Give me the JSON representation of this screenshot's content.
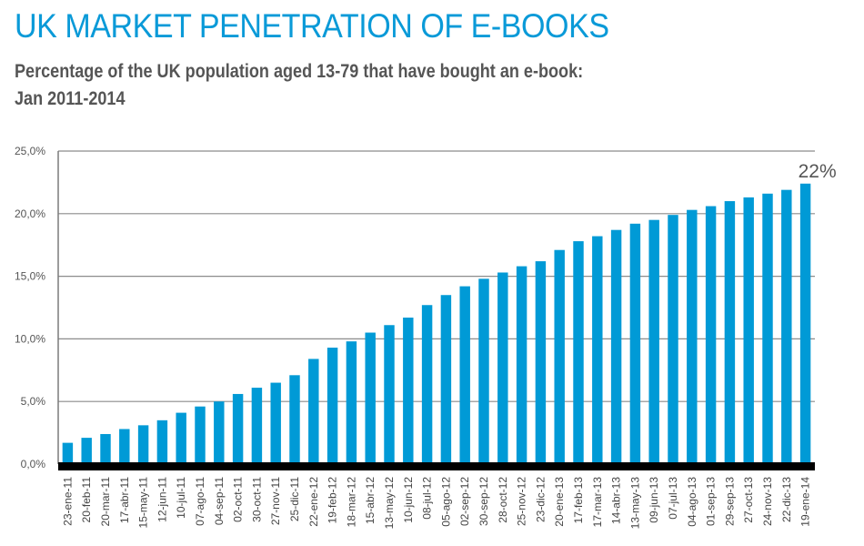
{
  "header": {
    "title": "UK MARKET PENETRATION OF E-BOOKS",
    "subtitle": "Percentage of the UK population aged 13-79 that have bought an e-book: Jan 2011-2014"
  },
  "colors": {
    "title": "#0a9ad8",
    "bar": "#009ad6",
    "baseline": "#000000",
    "grid": "#8c8c8c",
    "text": "#555555"
  },
  "chart_data": {
    "type": "bar",
    "title": "UK MARKET PENETRATION OF E-BOOKS",
    "subtitle": "Percentage of the UK population aged 13-79 that have bought an e-book: Jan 2011-2014",
    "xlabel": "",
    "ylabel": "",
    "ylim": [
      0,
      25
    ],
    "yticks": [
      0,
      5,
      10,
      15,
      20,
      25
    ],
    "ytick_labels": [
      "0,0%",
      "5,0%",
      "10,0%",
      "15,0%",
      "20,0%",
      "25,0%"
    ],
    "grid": true,
    "legend": "none",
    "categories": [
      "23-ene-11",
      "20-feb-11",
      "20-mar-11",
      "17-abr-11",
      "15-may-11",
      "12-jun-11",
      "10-jul-11",
      "07-ago-11",
      "04-sep-11",
      "02-oct-11",
      "30-oct-11",
      "27-nov-11",
      "25-dic-11",
      "22-ene-12",
      "19-feb-12",
      "18-mar-12",
      "15-abr-12",
      "13-may-12",
      "10-jun-12",
      "08-jul-12",
      "05-ago-12",
      "02-sep-12",
      "30-sep-12",
      "28-oct-12",
      "25-nov-12",
      "23-dic-12",
      "20-ene-13",
      "17-feb-13",
      "17-mar-13",
      "14-abr-13",
      "13-may-13",
      "09-jun-13",
      "07-jul-13",
      "04-ago-13",
      "01-sep-13",
      "29-sep-13",
      "27-oct-13",
      "24-nov-13",
      "22-dic-13",
      "19-ene-14"
    ],
    "values": [
      1.7,
      2.1,
      2.4,
      2.8,
      3.1,
      3.5,
      4.1,
      4.6,
      5.0,
      5.6,
      6.1,
      6.5,
      7.1,
      8.4,
      9.3,
      9.8,
      10.5,
      11.1,
      11.7,
      12.7,
      13.5,
      14.2,
      14.8,
      15.3,
      15.8,
      16.2,
      17.1,
      17.8,
      18.2,
      18.7,
      19.2,
      19.5,
      19.9,
      20.3,
      20.6,
      21.0,
      21.3,
      21.6,
      21.9,
      22.4
    ],
    "annotations": [
      {
        "text": "22%",
        "target": "19-ene-14"
      }
    ]
  }
}
